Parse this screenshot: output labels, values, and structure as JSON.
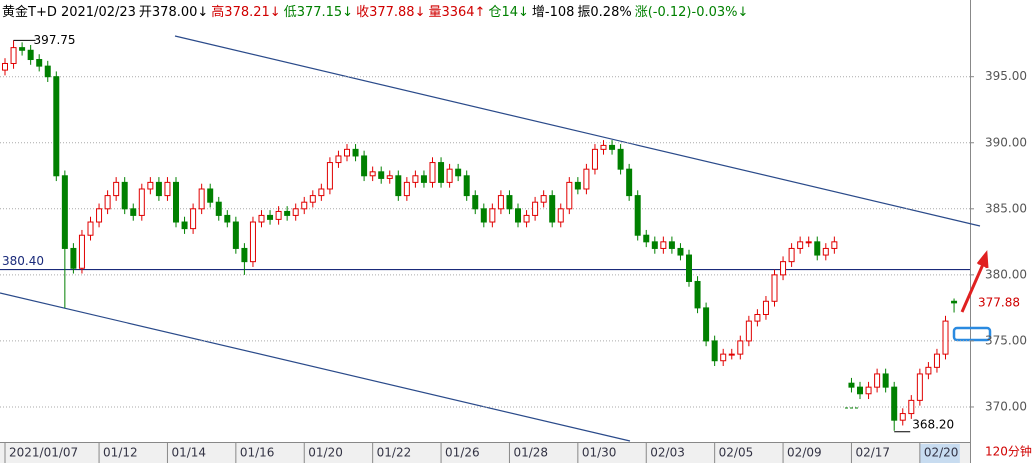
{
  "chart_data": {
    "type": "candlestick",
    "header": [
      {
        "text": "黄金T+D 2021/02/23",
        "color": "#000000"
      },
      {
        "text": "开378.00↓",
        "color": "#000000"
      },
      {
        "text": "高378.21↓",
        "color": "#d00000"
      },
      {
        "text": "低377.15↓",
        "color": "#008000"
      },
      {
        "text": "收377.88↓",
        "color": "#d00000"
      },
      {
        "text": "量3364↑",
        "color": "#d00000"
      },
      {
        "text": "仓14↓",
        "color": "#008000"
      },
      {
        "text": "增-108",
        "color": "#000000"
      },
      {
        "text": "振0.28%",
        "color": "#000000"
      },
      {
        "text": "涨(-0.12)-0.03%↓",
        "color": "#008000"
      }
    ],
    "period": "120分钟",
    "up_color": "#e00000",
    "down_color": "#008000",
    "open": [
      395.5,
      396,
      397.2,
      397,
      396.3,
      395.8,
      395,
      387.5,
      382,
      380.5,
      383,
      384,
      385,
      386,
      387,
      385,
      384.5,
      386.5,
      387,
      386,
      387,
      384,
      383.5,
      385,
      386.5,
      385.5,
      384.5,
      384,
      382,
      381,
      384,
      384.5,
      384.2,
      384.8,
      384.5,
      385,
      385.5,
      386,
      386.5,
      388.5,
      389,
      389.5,
      389,
      387.5,
      387.8,
      387.3,
      387.5,
      386,
      387,
      387.5,
      387,
      388.5,
      387,
      388,
      387.5,
      386,
      385,
      384,
      385,
      386,
      385,
      384,
      384.5,
      385.5,
      386,
      384,
      385,
      387,
      386.5,
      388,
      389.5,
      389.8,
      389.5,
      388,
      386,
      383,
      382.5,
      382,
      382.5,
      382,
      381.5,
      379.5,
      377.5,
      375,
      373.5,
      374,
      374,
      375,
      376.5,
      377,
      378,
      380,
      381,
      382,
      382.5,
      382.5,
      381.5,
      382,
      null,
      371.8,
      371.5,
      371,
      371.5,
      372.5,
      371.5,
      369,
      369.5,
      370.5,
      372.5,
      373,
      374,
      378
    ],
    "high": [
      396.4,
      397.75,
      397.6,
      397.4,
      396.7,
      396.2,
      395.4,
      387.9,
      382.4,
      383.4,
      384.4,
      385.4,
      386.4,
      387.4,
      387.4,
      385.4,
      386.9,
      387.4,
      387.4,
      387.4,
      387.4,
      384.4,
      385.4,
      386.9,
      386.9,
      385.9,
      384.9,
      384.4,
      382.4,
      384.4,
      384.9,
      384.9,
      385.2,
      385.2,
      385.4,
      385.9,
      386.4,
      386.9,
      388.9,
      389.4,
      389.9,
      389.9,
      389.4,
      388.2,
      388.2,
      387.9,
      387.9,
      387.4,
      387.9,
      387.9,
      388.9,
      388.9,
      388.4,
      388.4,
      387.9,
      386.4,
      385.4,
      385.4,
      386.4,
      386.4,
      385.4,
      384.9,
      385.9,
      386.4,
      386.4,
      385.4,
      387.4,
      387.4,
      388.4,
      389.9,
      390.2,
      390.2,
      389.9,
      388.4,
      386.4,
      383.4,
      382.9,
      382.9,
      382.9,
      382.4,
      381.9,
      379.9,
      377.9,
      375.4,
      374.4,
      374.4,
      375.4,
      376.9,
      377.4,
      378.4,
      380.4,
      381.4,
      382.4,
      382.9,
      382.9,
      382.9,
      382.4,
      382.9,
      null,
      372.2,
      371.9,
      371.9,
      372.9,
      372.9,
      371.9,
      369.9,
      370.9,
      372.9,
      373.4,
      374.4,
      376.9,
      378.21
    ],
    "low": [
      395.1,
      395.6,
      396.6,
      395.9,
      395.4,
      394.6,
      387.1,
      377.5,
      380.1,
      380.1,
      382.6,
      383.6,
      384.6,
      385.6,
      384.6,
      384.1,
      384.1,
      386.1,
      385.6,
      385.6,
      383.6,
      383.1,
      383.1,
      384.6,
      385.1,
      384.1,
      383.6,
      381.6,
      380,
      380.6,
      383.6,
      383.8,
      383.8,
      384.1,
      384.1,
      384.6,
      385.1,
      385.6,
      386.1,
      388.1,
      388.6,
      388.6,
      387.1,
      387.1,
      386.9,
      386.9,
      385.6,
      385.6,
      386.6,
      386.6,
      386.6,
      386.6,
      386.6,
      387.1,
      385.6,
      384.6,
      383.6,
      383.6,
      384.6,
      384.6,
      383.6,
      383.6,
      384.1,
      385.1,
      383.6,
      383.6,
      384.6,
      386.1,
      386.1,
      387.6,
      389.1,
      389.1,
      387.6,
      385.6,
      382.6,
      382.1,
      381.6,
      381.6,
      381.6,
      381.1,
      379.1,
      377.1,
      374.6,
      373.1,
      373.1,
      373.6,
      373.6,
      374.6,
      376.1,
      376.6,
      377.6,
      379.6,
      380.6,
      381.6,
      382.1,
      381.1,
      381.1,
      381.6,
      null,
      371.1,
      370.6,
      370.6,
      371.1,
      371.1,
      368.2,
      368.6,
      369.1,
      370.1,
      372.1,
      372.6,
      373.6,
      377.15
    ],
    "close": [
      396,
      397.2,
      397,
      396.3,
      395.8,
      395,
      387.5,
      382,
      380.5,
      383,
      384,
      385,
      386,
      387,
      385,
      384.5,
      386.5,
      387,
      386,
      387,
      384,
      383.5,
      385,
      386.5,
      385.5,
      384.5,
      384,
      382,
      381,
      384,
      384.5,
      384.2,
      384.8,
      384.5,
      385,
      385.5,
      386,
      386.5,
      388.5,
      389,
      389.5,
      389,
      387.5,
      387.8,
      387.3,
      387.5,
      386,
      387,
      387.5,
      387,
      388.5,
      387,
      388,
      387.5,
      386,
      385,
      384,
      385,
      386,
      385,
      384,
      384.5,
      385.5,
      386,
      384,
      385,
      387,
      386.5,
      388,
      389.5,
      389.8,
      389.5,
      388,
      386,
      383,
      382.5,
      382,
      382.5,
      382,
      381.5,
      379.5,
      377.5,
      375,
      373.5,
      374,
      374,
      375,
      376.5,
      377,
      378,
      380,
      381,
      382,
      382.5,
      382.5,
      381.5,
      382,
      382.5,
      null,
      371.5,
      371,
      371.5,
      372.5,
      371.5,
      369,
      369.5,
      370.5,
      372.5,
      373,
      374,
      376.5,
      377.88
    ],
    "xlim": [
      -0.585,
      112.865
    ],
    "xticks": [
      {
        "value": 0,
        "label": "2021/01/07"
      },
      {
        "value": 11,
        "label": "01/12"
      },
      {
        "value": 19,
        "label": "01/14"
      },
      {
        "value": 27,
        "label": "01/16"
      },
      {
        "value": 35,
        "label": "01/20"
      },
      {
        "value": 43,
        "label": "01/22"
      },
      {
        "value": 51,
        "label": "01/26"
      },
      {
        "value": 59,
        "label": "01/28"
      },
      {
        "value": 67,
        "label": "01/30"
      },
      {
        "value": 75,
        "label": "02/03"
      },
      {
        "value": 83,
        "label": "02/05"
      },
      {
        "value": 91,
        "label": "02/09"
      },
      {
        "value": 99,
        "label": "02/17"
      },
      {
        "value": 107,
        "label": "02/20"
      }
    ],
    "ylim": [
      367.5,
      400.2
    ],
    "yticks": [
      {
        "value": 370,
        "label": "370.00"
      },
      {
        "value": 375,
        "label": "375.00"
      },
      {
        "value": 380,
        "label": "380.00"
      },
      {
        "value": 385,
        "label": "385.00"
      },
      {
        "value": 390,
        "label": "390.00"
      },
      {
        "value": 395,
        "label": "395.00"
      }
    ],
    "grid": true,
    "hline": {
      "value": 380.4,
      "label": "380.40"
    },
    "high_mark": {
      "value": 397.75,
      "label": "397.75"
    },
    "low_mark": {
      "value": 368.2,
      "label": "368.20"
    },
    "last_mark": {
      "value": 377.88,
      "label": "377.88"
    }
  }
}
